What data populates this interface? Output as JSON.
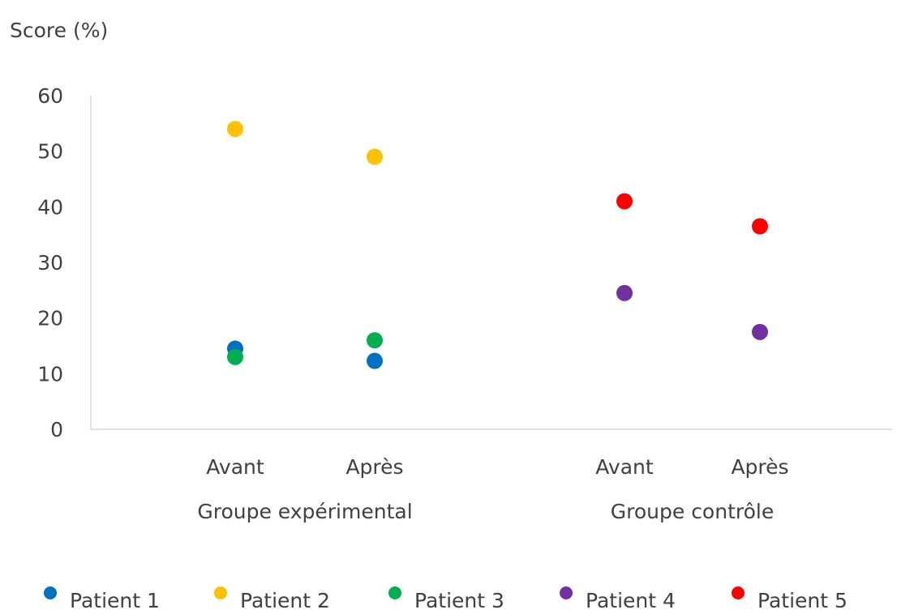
{
  "chart_data": {
    "type": "scatter",
    "ylabel": "Score (%)",
    "ylim": [
      0,
      60
    ],
    "y_ticks": [
      0,
      10,
      20,
      30,
      40,
      50,
      60
    ],
    "grid": false,
    "legend_position": "bottom",
    "categories": [
      "Avant",
      "Après",
      "Avant",
      "Après"
    ],
    "groups": [
      {
        "label": "Groupe expérimental",
        "categories": [
          "Avant",
          "Après"
        ]
      },
      {
        "label": "Groupe contrôle",
        "categories": [
          "Avant",
          "Après"
        ]
      }
    ],
    "series": [
      {
        "name": "Patient 1",
        "color": "#0070C0",
        "values": [
          14.5,
          12.3,
          null,
          null
        ]
      },
      {
        "name": "Patient 2",
        "color": "#FFC000",
        "values": [
          54,
          49,
          null,
          null
        ]
      },
      {
        "name": "Patient 3",
        "color": "#00B050",
        "values": [
          13,
          16,
          null,
          null
        ]
      },
      {
        "name": "Patient 4",
        "color": "#7030A0",
        "values": [
          null,
          null,
          24.5,
          17.5
        ]
      },
      {
        "name": "Patient 5",
        "color": "#FF0000",
        "values": [
          null,
          null,
          41,
          36.5
        ]
      }
    ]
  }
}
